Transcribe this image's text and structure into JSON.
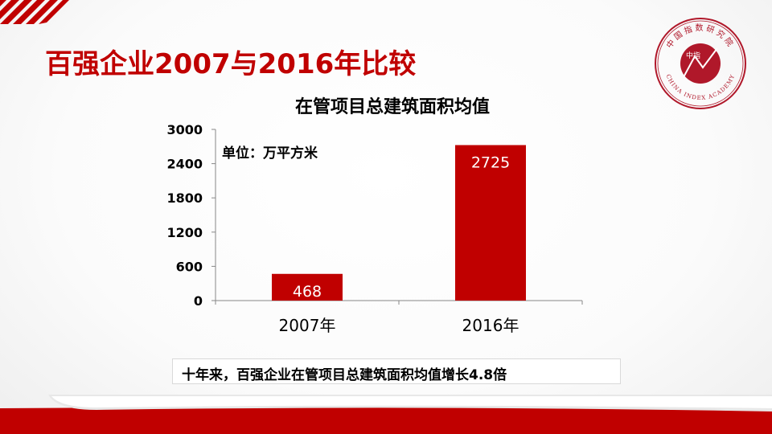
{
  "slide": {
    "title": "百强企业2007与2016年比较",
    "summary": "十年来，百强企业在管项目总建筑面积均值增长4.8倍",
    "accent_color": "#c00000"
  },
  "seal": {
    "text_top": "中国指数研究院",
    "text_bottom": "CHINA INDEX ACADEMY",
    "center_glyphs": "中指",
    "icon": "china-index-academy-logo"
  },
  "chart_data": {
    "type": "bar",
    "title": "在管项目总建筑面积均值",
    "unit_label": "单位：万平方米",
    "categories": [
      "2007年",
      "2016年"
    ],
    "values": [
      468,
      2725
    ],
    "data_labels": [
      "468",
      "2725"
    ],
    "yticks": [
      "0",
      "600",
      "1200",
      "1800",
      "2400",
      "3000"
    ],
    "ylim": [
      0,
      3000
    ],
    "bar_color": "#c00000",
    "grid": false,
    "legend": "none"
  }
}
